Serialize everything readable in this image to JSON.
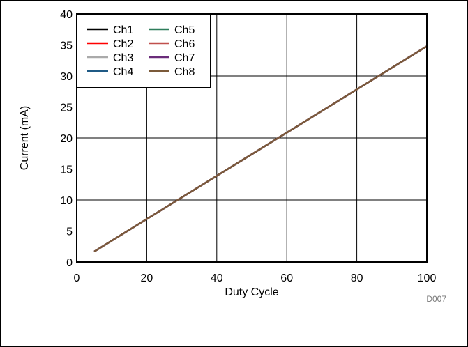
{
  "chart_data": {
    "type": "line",
    "title": "",
    "xlabel": "Duty Cycle",
    "ylabel": "Current (mA)",
    "xlim": [
      0,
      100
    ],
    "ylim": [
      0,
      40
    ],
    "xticks": [
      "0",
      "20",
      "40",
      "60",
      "80",
      "100"
    ],
    "yticks": [
      "0",
      "5",
      "10",
      "15",
      "20",
      "25",
      "30",
      "35",
      "40"
    ],
    "grid": true,
    "legend_position": "top-left",
    "x": [
      5,
      100
    ],
    "series": [
      {
        "name": "Ch1",
        "color": "#000000",
        "values": [
          1.7,
          34.8
        ]
      },
      {
        "name": "Ch2",
        "color": "#ff0000",
        "values": [
          1.7,
          34.8
        ]
      },
      {
        "name": "Ch3",
        "color": "#aaaaaa",
        "values": [
          1.7,
          34.8
        ]
      },
      {
        "name": "Ch4",
        "color": "#1f5a85",
        "values": [
          1.7,
          34.8
        ]
      },
      {
        "name": "Ch5",
        "color": "#2e7d5b",
        "values": [
          1.7,
          34.8
        ]
      },
      {
        "name": "Ch6",
        "color": "#c0504d",
        "values": [
          1.7,
          34.8
        ]
      },
      {
        "name": "Ch7",
        "color": "#6a2c7a",
        "values": [
          1.7,
          34.8
        ]
      },
      {
        "name": "Ch8",
        "color": "#7b5a3a",
        "values": [
          1.7,
          34.8
        ]
      }
    ],
    "annotation": "D007"
  }
}
